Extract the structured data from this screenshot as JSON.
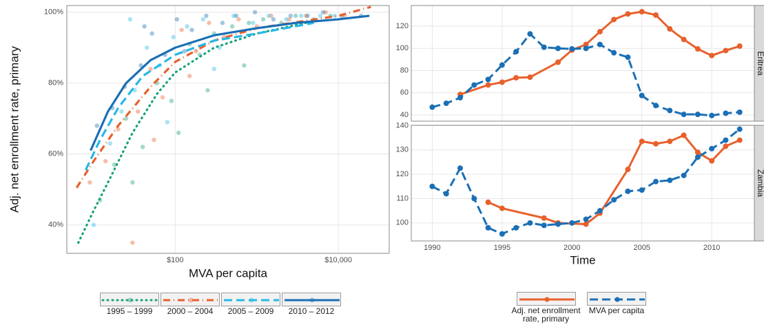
{
  "chart_data": [
    {
      "type": "scatter",
      "xlabel": "MVA per capita",
      "ylabel": "Adj. net enrollment rate, primary",
      "xlog": true,
      "grid": true,
      "xlim": [
        4.7,
        42000
      ],
      "ylim": [
        32,
        101.9
      ],
      "xticks": [
        {
          "value": 100,
          "label": "$100"
        },
        {
          "value": 10000,
          "label": "$10,000"
        }
      ],
      "yticks": [
        {
          "value": 40,
          "label": "40%"
        },
        {
          "value": 60,
          "label": "60%"
        },
        {
          "value": 80,
          "label": "80%"
        },
        {
          "value": 100,
          "label": "100%"
        }
      ],
      "series": [
        {
          "name": "1995 – 1999",
          "color": "#17a07a",
          "dash": "dotted",
          "x": [
            12,
            18,
            25,
            40,
            60,
            90,
            150,
            200,
            300,
            500,
            800,
            1200,
            2000,
            3000,
            5000,
            8000,
            700,
            250,
            110,
            30
          ],
          "y": [
            47,
            57,
            70,
            62,
            80,
            75,
            91,
            88,
            94,
            96,
            97,
            98,
            97,
            99,
            98,
            99,
            85,
            78,
            66,
            52
          ],
          "fit_x": [
            6.5,
            10,
            15,
            30,
            60,
            100,
            300,
            1000,
            4000
          ],
          "fit_y": [
            35,
            44,
            52,
            66,
            77,
            83,
            90,
            94,
            97
          ]
        },
        {
          "name": "2000 – 2004",
          "color": "#e8602c",
          "dash": "dotdash",
          "x": [
            9,
            14,
            20,
            35,
            50,
            70,
            120,
            180,
            260,
            400,
            600,
            1000,
            1500,
            2500,
            4000,
            7000,
            12000,
            30,
            55,
            150
          ],
          "y": [
            52,
            58,
            67,
            72,
            84,
            76,
            95,
            89,
            97,
            93,
            98,
            96,
            99,
            98,
            99,
            100,
            99,
            35,
            64,
            82
          ],
          "fit_x": [
            6.2,
            10,
            20,
            50,
            100,
            300,
            1000,
            10000,
            25000
          ],
          "fit_y": [
            50.5,
            58,
            68,
            79,
            86,
            92,
            95.5,
            99,
            101.5
          ]
        },
        {
          "name": "2005 – 2009",
          "color": "#27b8e6",
          "dash": "dashed",
          "x": [
            10,
            16,
            22,
            32,
            45,
            65,
            95,
            140,
            220,
            350,
            520,
            900,
            1400,
            2300,
            3500,
            6000,
            9000,
            28,
            80,
            300
          ],
          "y": [
            40,
            63,
            72,
            78,
            90,
            85,
            93,
            96,
            98,
            90,
            99,
            97,
            99,
            98,
            99,
            99,
            99,
            98,
            69,
            84
          ],
          "fit_x": [
            8,
            12,
            20,
            40,
            100,
            300,
            1000,
            5000
          ],
          "fit_y": [
            55.5,
            64,
            73,
            82,
            88,
            92,
            94,
            97
          ]
        },
        {
          "name": "2010 – 2012",
          "color": "#1a6fb5",
          "dash": "solid",
          "x": [
            11,
            17,
            24,
            38,
            52,
            75,
            105,
            160,
            240,
            380,
            560,
            950,
            1600,
            2600,
            4200,
            6500,
            11000,
            19000,
            42,
            130
          ],
          "y": [
            68,
            73,
            79,
            85,
            94,
            88,
            98,
            95,
            99,
            97,
            99,
            100,
            98,
            99,
            99,
            100,
            99,
            99,
            96,
            89
          ],
          "fit_x": [
            9.2,
            15,
            25,
            50,
            100,
            300,
            1000,
            3000,
            10000,
            24000
          ],
          "fit_y": [
            61,
            72,
            80,
            86.5,
            90,
            93.5,
            95.5,
            97,
            98,
            99
          ]
        }
      ]
    },
    {
      "type": "line",
      "xlabel": "Time",
      "grid": true,
      "xlim": [
        1988.5,
        2013.05
      ],
      "xticks": [
        1990,
        1995,
        2000,
        2005,
        2010
      ],
      "series": [
        {
          "name": "Adj. net enrollment rate, primary",
          "color": "#e8602c",
          "dash": "solid"
        },
        {
          "name": "MVA per capita",
          "color": "#1a6fb5",
          "dash": "dashed"
        }
      ],
      "facets": [
        {
          "label": "Eritrea",
          "ylim": [
            34.4,
            138.6
          ],
          "yticks": [
            40,
            60,
            80,
            100,
            120
          ],
          "lines": [
            {
              "x": [
                1992,
                1994,
                1995,
                1996,
                1997,
                1999,
                2000,
                2001,
                2002,
                2003,
                2004,
                2005,
                2006,
                2007,
                2008,
                2009,
                2010,
                2011,
                2012
              ],
              "values": [
                58.5,
                67,
                69.5,
                73.5,
                74,
                87.5,
                98.5,
                103.5,
                115,
                126,
                131,
                133,
                130,
                117.5,
                108,
                99.5,
                93.5,
                98,
                102
              ]
            },
            {
              "x": [
                1990,
                1991,
                1992,
                1993,
                1994,
                1995,
                1996,
                1997,
                1998,
                1999,
                2000,
                2001,
                2002,
                2003,
                2004,
                2005,
                2006,
                2007,
                2008,
                2009,
                2010,
                2011,
                2012
              ],
              "values": [
                47,
                50.5,
                55.5,
                67,
                72,
                85,
                97,
                113,
                101,
                100,
                99.5,
                100,
                103.5,
                96,
                92,
                57.5,
                48.5,
                44,
                40.5,
                40.5,
                39.5,
                41.5,
                42.5
              ]
            }
          ]
        },
        {
          "label": "Zambia",
          "ylim": [
            92.6,
            140.1
          ],
          "yticks": [
            100,
            110,
            120,
            130,
            140
          ],
          "lines": [
            {
              "x": [
                1994,
                1995,
                1998,
                1999,
                2001,
                2002,
                2004,
                2005,
                2006,
                2007,
                2008,
                2009,
                2010,
                2011,
                2012
              ],
              "values": [
                108.5,
                106,
                102,
                100,
                99.5,
                104,
                122,
                133.5,
                132.5,
                133.5,
                136,
                129,
                125.5,
                131.5,
                134
              ]
            },
            {
              "x": [
                1990,
                1991,
                1992,
                1993,
                1994,
                1995,
                1996,
                1997,
                1998,
                1999,
                2000,
                2001,
                2002,
                2003,
                2004,
                2005,
                2006,
                2007,
                2008,
                2009,
                2010,
                2011,
                2012
              ],
              "values": [
                115,
                112,
                122.5,
                110,
                98,
                95.5,
                98,
                100,
                99,
                99.5,
                100,
                101.5,
                105,
                109.5,
                113,
                113.5,
                117,
                117.5,
                119.5,
                127,
                130.5,
                134,
                138.5
              ]
            }
          ]
        }
      ]
    }
  ]
}
